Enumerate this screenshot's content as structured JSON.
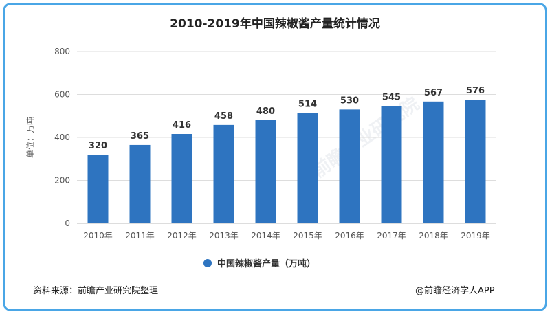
{
  "chart_data": {
    "type": "bar",
    "title": "2010-2019年中国辣椒酱产量统计情况",
    "ylabel": "单位：万吨",
    "xlabel": "",
    "categories": [
      "2010年",
      "2011年",
      "2012年",
      "2013年",
      "2014年",
      "2015年",
      "2016年",
      "2017年",
      "2018年",
      "2019年"
    ],
    "series": [
      {
        "name": "中国辣椒酱产量（万吨）",
        "values": [
          320,
          365,
          416,
          458,
          480,
          514,
          530,
          545,
          567,
          576
        ]
      }
    ],
    "ylim": [
      0,
      800
    ],
    "yticks": [
      0,
      200,
      400,
      600,
      800
    ],
    "grid": true,
    "legend_position": "bottom",
    "bar_color": "#2e74c0"
  },
  "footer": {
    "source": "资料来源：前瞻产业研究院整理",
    "credit": "@前瞻经济学人APP"
  },
  "watermark": "前瞻产业研究院"
}
